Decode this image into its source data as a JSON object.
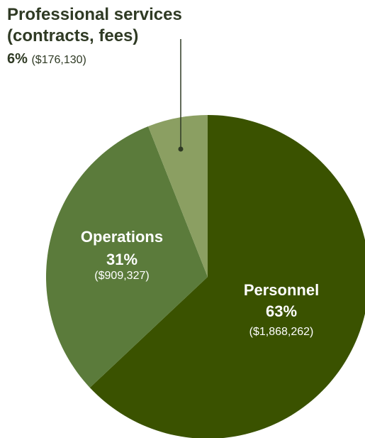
{
  "chart_data": {
    "type": "pie",
    "categories": [
      "Personnel",
      "Operations",
      "Professional services (contracts, fees)"
    ],
    "values": [
      63,
      31,
      6
    ],
    "value_labels": [
      "63%",
      "31%",
      "6%"
    ],
    "amount_labels": [
      "($1,868,262)",
      "($909,327)",
      "($176,130)"
    ],
    "colors": [
      "#3a5200",
      "#5b7b3b",
      "#8b9f62"
    ]
  }
}
